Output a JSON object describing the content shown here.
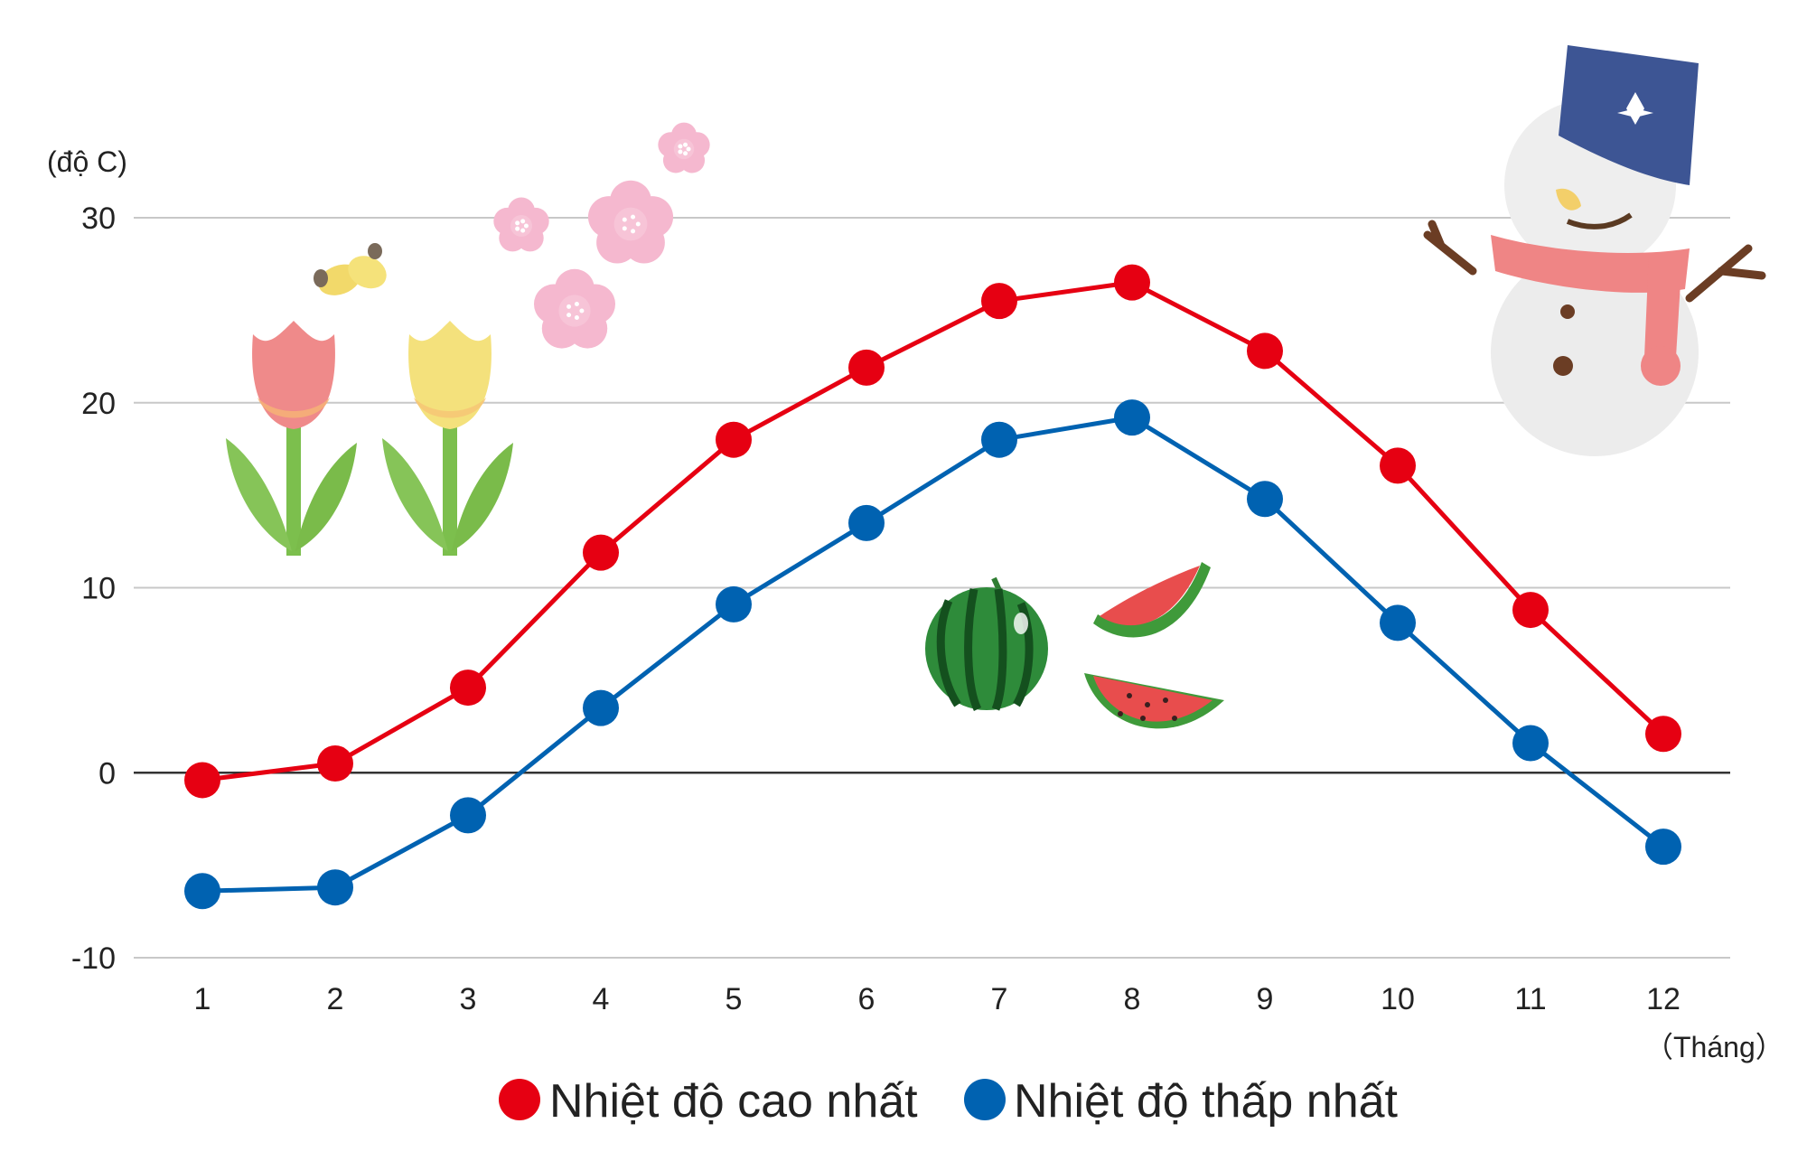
{
  "chart_data": {
    "type": "line",
    "categories": [
      "1",
      "2",
      "3",
      "4",
      "5",
      "6",
      "7",
      "8",
      "9",
      "10",
      "11",
      "12"
    ],
    "xlabel": "（Tháng）",
    "ylabel": "(độ C)",
    "ylim": [
      -10,
      30
    ],
    "yticks": [
      -10,
      0,
      10,
      20,
      30
    ],
    "grid": true,
    "legend_position": "bottom",
    "series": [
      {
        "name": "Nhiệt độ cao nhất",
        "color": "#e60012",
        "values": [
          -0.4,
          0.5,
          4.6,
          11.9,
          18.0,
          21.9,
          25.5,
          26.5,
          22.8,
          16.6,
          8.8,
          2.1
        ]
      },
      {
        "name": "Nhiệt độ thấp nhất",
        "color": "#0062b1",
        "values": [
          -6.4,
          -6.2,
          -2.3,
          3.5,
          9.1,
          13.5,
          18.0,
          19.2,
          14.8,
          8.1,
          1.6,
          -4.0
        ]
      }
    ]
  },
  "decorations": {
    "spring": [
      "tulip-icon",
      "butterfly-icon",
      "cherry-blossom-icon"
    ],
    "summer": [
      "watermelon-icon"
    ],
    "winter": [
      "snowman-icon"
    ],
    "colors": {
      "grid": "#c8c8c8",
      "zero_line": "#333333"
    }
  }
}
